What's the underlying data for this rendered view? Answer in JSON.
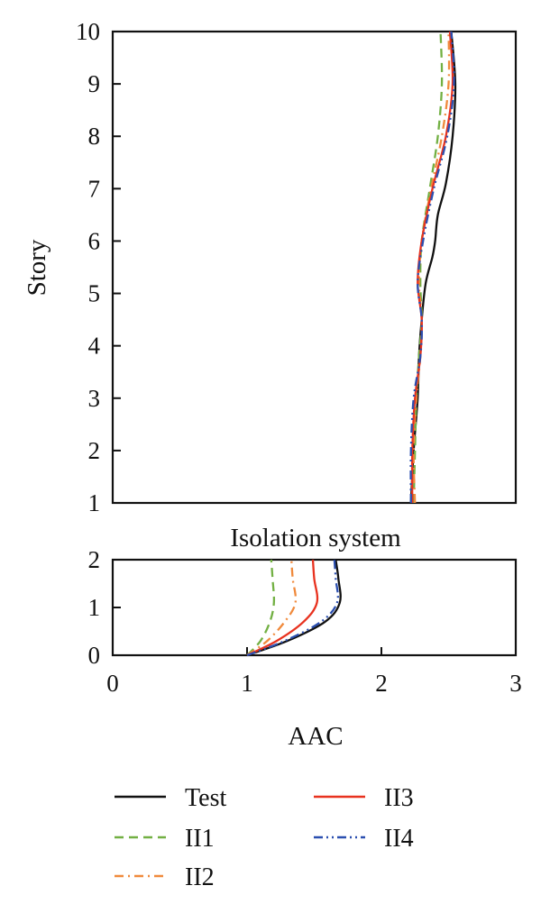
{
  "chart_data": [
    {
      "type": "line",
      "panel": "upper",
      "ylabel": "Story",
      "ylim": [
        1,
        10
      ],
      "yticks": [
        "1",
        "2",
        "3",
        "4",
        "5",
        "6",
        "7",
        "8",
        "9",
        "10"
      ],
      "xlim": [
        0,
        3
      ],
      "series": [
        {
          "name": "Test",
          "x": [
            2.22,
            2.24,
            2.27,
            2.28,
            2.3,
            2.33,
            2.38,
            2.4,
            2.42,
            2.48,
            2.53,
            2.55,
            2.52
          ],
          "y": [
            1,
            2,
            3,
            3.8,
            4.5,
            5.2,
            5.7,
            6.0,
            6.5,
            7.1,
            8.0,
            9.0,
            10
          ]
        },
        {
          "name": "II1",
          "x": [
            2.24,
            2.25,
            2.26,
            2.28,
            2.3,
            2.29,
            2.3,
            2.36,
            2.42,
            2.45,
            2.44
          ],
          "y": [
            1,
            2,
            3,
            3.8,
            4.5,
            5.2,
            6.0,
            7.0,
            8.0,
            9.0,
            10
          ]
        },
        {
          "name": "II2",
          "x": [
            2.25,
            2.24,
            2.26,
            2.29,
            2.3,
            2.28,
            2.3,
            2.37,
            2.45,
            2.5,
            2.5
          ],
          "y": [
            1,
            2,
            3,
            3.8,
            4.5,
            5.2,
            6.0,
            7.0,
            8.0,
            9.0,
            10
          ]
        },
        {
          "name": "II3",
          "x": [
            2.23,
            2.23,
            2.25,
            2.29,
            2.3,
            2.27,
            2.3,
            2.38,
            2.48,
            2.53,
            2.51
          ],
          "y": [
            1,
            2,
            3,
            3.8,
            4.5,
            5.2,
            6.0,
            7.0,
            8.0,
            9.0,
            10
          ]
        },
        {
          "name": "II4",
          "x": [
            2.22,
            2.22,
            2.24,
            2.29,
            2.3,
            2.27,
            2.31,
            2.39,
            2.49,
            2.54,
            2.52
          ],
          "y": [
            1,
            2,
            3,
            3.8,
            4.5,
            5.2,
            6.0,
            7.0,
            8.0,
            9.0,
            10
          ]
        }
      ]
    },
    {
      "type": "line",
      "panel": "lower",
      "title": "Isolation system",
      "xlabel": "AAC",
      "xlim": [
        0,
        3
      ],
      "xticks": [
        "0",
        "1",
        "2",
        "3"
      ],
      "ylim": [
        0,
        2
      ],
      "yticks": [
        "0",
        "1",
        "2"
      ],
      "series": [
        {
          "name": "Test",
          "x": [
            1.0,
            1.3,
            1.58,
            1.69,
            1.68,
            1.66
          ],
          "y": [
            0,
            0.3,
            0.7,
            1.1,
            1.6,
            2.0
          ]
        },
        {
          "name": "II1",
          "x": [
            1.0,
            1.1,
            1.17,
            1.2,
            1.19,
            1.18
          ],
          "y": [
            0,
            0.3,
            0.7,
            1.1,
            1.6,
            2.0
          ]
        },
        {
          "name": "II2",
          "x": [
            1.0,
            1.15,
            1.28,
            1.36,
            1.34,
            1.33
          ],
          "y": [
            0,
            0.3,
            0.7,
            1.1,
            1.6,
            2.0
          ]
        },
        {
          "name": "II3",
          "x": [
            1.0,
            1.22,
            1.42,
            1.52,
            1.5,
            1.49
          ],
          "y": [
            0,
            0.3,
            0.7,
            1.1,
            1.6,
            2.0
          ]
        },
        {
          "name": "II4",
          "x": [
            1.0,
            1.28,
            1.55,
            1.67,
            1.66,
            1.65
          ],
          "y": [
            0,
            0.3,
            0.7,
            1.1,
            1.6,
            2.0
          ]
        }
      ]
    }
  ],
  "legend": [
    {
      "label": "Test",
      "color": "#111111",
      "dash": "solid"
    },
    {
      "label": "II1",
      "color": "#72b043",
      "dash": "dash"
    },
    {
      "label": "II2",
      "color": "#f08a3c",
      "dash": "dashdot"
    },
    {
      "label": "II3",
      "color": "#e8321f",
      "dash": "solid"
    },
    {
      "label": "II4",
      "color": "#2b4fb0",
      "dash": "dashdotdot"
    }
  ]
}
